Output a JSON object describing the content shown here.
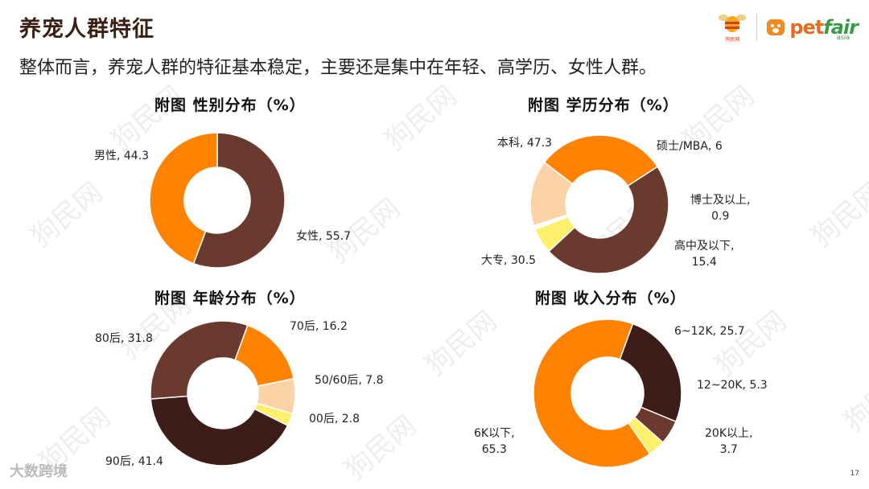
{
  "header": {
    "title": "养宠人群特征",
    "subtitle": "整体而言，养宠人群的特征基本稳定，主要还是集中在年轻、高学历、女性人群。"
  },
  "logos": {
    "left_caption": "狗民网",
    "pet": "pet",
    "fair": "fair",
    "asia": "asia"
  },
  "watermark": "狗民网",
  "footer": {
    "brand": "大数跨境",
    "page": "17"
  },
  "colors": {
    "dark_brown": "#6b3a2e",
    "orange": "#ff8200",
    "yellow": "#fff06b",
    "white": "#ffffff",
    "peach": "#fcd3a7",
    "darker_brown": "#3d1d18"
  },
  "chart_data": [
    {
      "type": "pie",
      "title": "附图  性别分布（%）",
      "categories": [
        "女性",
        "男性"
      ],
      "values": [
        55.7,
        44.3
      ],
      "labels": [
        "女性, 55.7",
        "男性, 44.3"
      ],
      "colors": [
        "#6b3a2e",
        "#ff8200"
      ]
    },
    {
      "type": "pie",
      "title": "附图  学历分布（%）",
      "categories": [
        "本科",
        "硕士/MBA",
        "博士及以上",
        "高中及以下",
        "大专"
      ],
      "values": [
        47.3,
        6,
        0.9,
        15.4,
        30.5
      ],
      "labels": [
        "本科, 47.3",
        "硕士/MBA, 6",
        "博士及以上,\n0.9",
        "高中及以下,\n15.4",
        "大专, 30.5"
      ],
      "colors": [
        "#6b3a2e",
        "#fff06b",
        "#ffffff",
        "#fcd3a7",
        "#ff8200"
      ]
    },
    {
      "type": "pie",
      "title": "附图  年龄分布（%）",
      "categories": [
        "70后",
        "50/60后",
        "00后",
        "90后",
        "80后"
      ],
      "values": [
        16.2,
        7.8,
        2.8,
        41.4,
        31.8
      ],
      "labels": [
        "70后, 16.2",
        "50/60后, 7.8",
        "00后, 2.8",
        "90后, 41.4",
        "80后, 31.8"
      ],
      "colors": [
        "#ff8200",
        "#fcd3a7",
        "#fff06b",
        "#3d1d18",
        "#6b3a2e"
      ]
    },
    {
      "type": "pie",
      "title": "附图  收入分布（%）",
      "categories": [
        "6~12K",
        "12~20K",
        "20K以上",
        "6K以下"
      ],
      "values": [
        25.7,
        5.3,
        3.7,
        65.3
      ],
      "labels": [
        "6~12K, 25.7",
        "12~20K, 5.3",
        "20K以上,\n3.7",
        "6K以下,\n65.3"
      ],
      "colors": [
        "#3d1d18",
        "#6b3a2e",
        "#fff06b",
        "#ff8200"
      ]
    }
  ]
}
